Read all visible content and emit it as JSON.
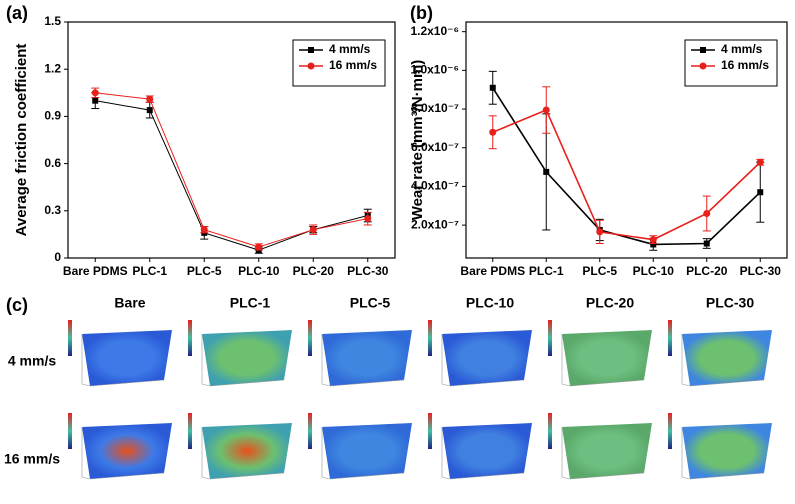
{
  "chart_data": [
    {
      "type": "line",
      "panel_label": "(a)",
      "y_label": "Average friction coefficient",
      "categories": [
        "Bare PDMS",
        "PLC-1",
        "PLC-5",
        "PLC-10",
        "PLC-20",
        "PLC-30"
      ],
      "series": [
        {
          "name": "4 mm/s",
          "color": "#000000",
          "marker": "square",
          "values": [
            1.0,
            0.94,
            0.16,
            0.05,
            0.18,
            0.27
          ],
          "errors": [
            0.05,
            0.05,
            0.04,
            0.02,
            0.02,
            0.04
          ]
        },
        {
          "name": "16 mm/s",
          "color": "#e8201c",
          "marker": "circle",
          "values": [
            1.05,
            1.01,
            0.18,
            0.07,
            0.18,
            0.25
          ],
          "errors": [
            0.03,
            0.02,
            0.02,
            0.02,
            0.03,
            0.04
          ]
        }
      ],
      "ylim": [
        0,
        1.5
      ],
      "yticks": [
        0,
        0.3,
        0.6,
        0.9,
        1.2,
        1.5
      ],
      "legend": "upper right"
    },
    {
      "type": "line",
      "panel_label": "(b)",
      "y_label": "Wear rate (mm³/N·mm)",
      "categories": [
        "Bare PDMS",
        "PLC-1",
        "PLC-5",
        "PLC-10",
        "PLC-20",
        "PLC-30"
      ],
      "series": [
        {
          "name": "4 mm/s",
          "color": "#000000",
          "marker": "square",
          "values": [
            9.1e-07,
            4.75e-07,
            1.75e-07,
            1e-07,
            1.05e-07,
            3.7e-07
          ],
          "errors": [
            8.5e-08,
            3e-07,
            5.5e-08,
            3e-08,
            2.5e-08,
            1.55e-07
          ]
        },
        {
          "name": "16 mm/s",
          "color": "#e8201c",
          "marker": "circle",
          "values": [
            6.8e-07,
            7.95e-07,
            1.65e-07,
            1.25e-07,
            2.6e-07,
            5.25e-07
          ],
          "errors": [
            8.5e-08,
            1.2e-07,
            6e-08,
            2e-08,
            9e-08,
            1.5e-08
          ]
        }
      ],
      "ylim": [
        3e-08,
        1.25e-06
      ],
      "yticks": [
        {
          "value": 2e-07,
          "label": "2.0x10⁻⁷"
        },
        {
          "value": 4e-07,
          "label": "4.0x10⁻⁷"
        },
        {
          "value": 6e-07,
          "label": "6.0x10⁻⁷"
        },
        {
          "value": 8e-07,
          "label": "8.0x10⁻⁷"
        },
        {
          "value": 1e-06,
          "label": "1.0x10⁻⁶"
        },
        {
          "value": 1.2e-06,
          "label": "1.2x10⁻⁶"
        }
      ],
      "legend": "upper right"
    }
  ],
  "panel_c": {
    "label": "(c)",
    "columns": [
      "Bare",
      "PLC-1",
      "PLC-5",
      "PLC-10",
      "PLC-20",
      "PLC-30"
    ],
    "rows": [
      "4 mm/s",
      "16 mm/s"
    ]
  }
}
